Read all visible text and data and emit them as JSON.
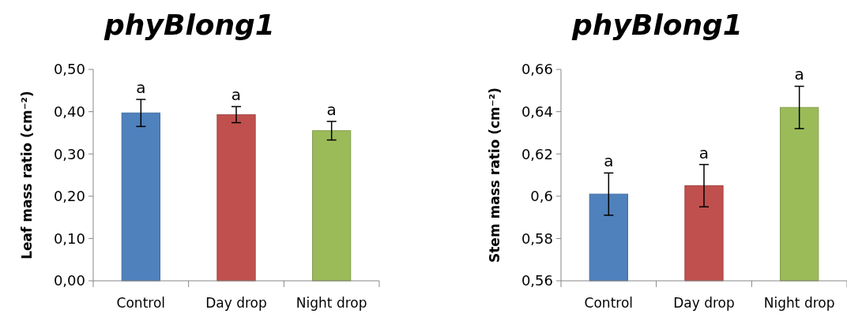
{
  "chart_data": [
    {
      "type": "bar",
      "title": "phyBlong1",
      "ylabel": "Leaf mass ratio (cm⁻²)",
      "categories": [
        "Control",
        "Day drop",
        "Night drop"
      ],
      "values": [
        0.397,
        0.393,
        0.355
      ],
      "colors": [
        "#4f81bd",
        "#c0504d",
        "#9bbb59"
      ],
      "errors": [
        0.032,
        0.019,
        0.022
      ],
      "ylim": [
        0,
        0.5
      ],
      "yticks": [
        {
          "value": 0,
          "label": "0,00"
        },
        {
          "value": 0.1,
          "label": "0,10"
        },
        {
          "value": 0.2,
          "label": "0,20"
        },
        {
          "value": 0.3,
          "label": "0,30"
        },
        {
          "value": 0.4,
          "label": "0,40"
        },
        {
          "value": 0.5,
          "label": "0,50"
        }
      ],
      "grid": false,
      "annotations": [
        {
          "text": "a",
          "x": "Control",
          "y": 0.429
        },
        {
          "text": "a",
          "x": "Day drop",
          "y": 0.412
        },
        {
          "text": "a",
          "x": "Night drop",
          "y": 0.377
        }
      ]
    },
    {
      "type": "bar",
      "title": "phyBlong1",
      "ylabel": "Stem mass ratio (cm⁻²)",
      "categories": [
        "Control",
        "Day drop",
        "Night drop"
      ],
      "values": [
        0.601,
        0.605,
        0.642
      ],
      "colors": [
        "#4f81bd",
        "#c0504d",
        "#9bbb59"
      ],
      "errors": [
        0.01,
        0.01,
        0.01
      ],
      "ylim": [
        0.56,
        0.66
      ],
      "yticks": [
        {
          "value": 0.56,
          "label": "0,56"
        },
        {
          "value": 0.58,
          "label": "0,58"
        },
        {
          "value": 0.6,
          "label": "0,6"
        },
        {
          "value": 0.62,
          "label": "0,62"
        },
        {
          "value": 0.64,
          "label": "0,64"
        },
        {
          "value": 0.66,
          "label": "0,66"
        }
      ],
      "grid": false,
      "annotations": [
        {
          "text": "a",
          "x": "Control",
          "y": 0.611
        },
        {
          "text": "a",
          "x": "Day drop",
          "y": 0.615
        },
        {
          "text": "a",
          "x": "Night drop",
          "y": 0.652
        }
      ]
    }
  ]
}
